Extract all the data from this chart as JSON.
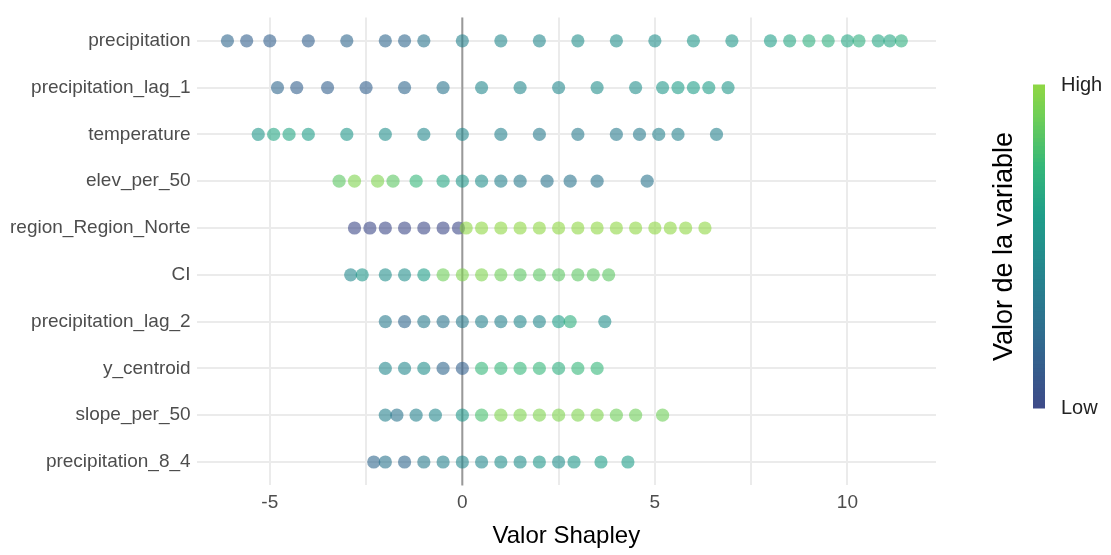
{
  "chart_data": {
    "type": "scatter",
    "orientation": "horizontal",
    "xlabel": "Valor Shapley",
    "clabel": "Valor de la variable",
    "categories": [
      "precipitation",
      "precipitation_lag_1",
      "temperature",
      "elev_per_50",
      "region_Region_Norte",
      "CI",
      "precipitation_lag_2",
      "y_centroid",
      "slope_per_50",
      "precipitation_8_4"
    ],
    "xlim": [
      -6.9,
      12.3
    ],
    "xticks": [
      -5,
      {
        "value": -2.5,
        "label": null
      },
      0,
      {
        "value": 2.5,
        "label": null
      },
      5,
      {
        "value": 7.5,
        "label": null
      },
      10
    ],
    "clim": [
      0,
      1
    ],
    "cticks": [
      {
        "value": 0,
        "label": "Low"
      },
      {
        "value": 1,
        "label": "High"
      }
    ],
    "grid": true,
    "legend": false,
    "marker": "circle",
    "ref_lines": [
      {
        "axis": "x",
        "value": 0,
        "color": "#999999"
      }
    ],
    "series": [
      {
        "x": [
          "precipitation",
          "precipitation",
          "precipitation",
          "precipitation",
          "precipitation",
          "precipitation",
          "precipitation",
          "precipitation",
          "precipitation",
          "precipitation",
          "precipitation",
          "precipitation",
          "precipitation",
          "precipitation",
          "precipitation",
          "precipitation",
          "precipitation",
          "precipitation",
          "precipitation",
          "precipitation",
          "precipitation",
          "precipitation",
          "precipitation",
          "precipitation",
          "precipitation"
        ],
        "values": [
          -6.1,
          -5.6,
          -5,
          -4,
          -3,
          -2,
          -1.5,
          -1,
          0,
          1,
          2,
          3,
          4,
          5,
          6,
          7,
          8,
          8.5,
          9,
          9.5,
          10,
          10.3,
          10.8,
          11.1,
          11.4
        ],
        "colors": [
          "#31688e",
          "#34618d",
          "#34618d",
          "#34618d",
          "#31688e",
          "#31688e",
          "#31688e",
          "#2c758e",
          "#26828e",
          "#24898d",
          "#24898d",
          "#23908c",
          "#23908c",
          "#23908c",
          "#21978a",
          "#21978a",
          "#1f9e89",
          "#26a684",
          "#2eaf7e",
          "#2eaf7e",
          "#26a684",
          "#2eaf7e",
          "#26a684",
          "#26a684",
          "#2eaf7e"
        ]
      },
      {
        "x": [
          "precipitation_lag_1",
          "precipitation_lag_1",
          "precipitation_lag_1",
          "precipitation_lag_1",
          "precipitation_lag_1",
          "precipitation_lag_1",
          "precipitation_lag_1",
          "precipitation_lag_1",
          "precipitation_lag_1",
          "precipitation_lag_1",
          "precipitation_lag_1",
          "precipitation_lag_1",
          "precipitation_lag_1",
          "precipitation_lag_1",
          "precipitation_lag_1",
          "precipitation_lag_1"
        ],
        "values": [
          -4.8,
          -4.3,
          -3.5,
          -2.5,
          -1.5,
          -0.5,
          0.5,
          1.5,
          2.5,
          3.5,
          4.5,
          5.2,
          5.6,
          6,
          6.4,
          6.9
        ],
        "colors": [
          "#31688e",
          "#34618d",
          "#34618d",
          "#34618d",
          "#31688e",
          "#2c758e",
          "#24898d",
          "#24898d",
          "#24898d",
          "#23908c",
          "#23908c",
          "#21978a",
          "#1f9e89",
          "#1f9e89",
          "#1f9e89",
          "#21978a"
        ]
      },
      {
        "x": [
          "temperature",
          "temperature",
          "temperature",
          "temperature",
          "temperature",
          "temperature",
          "temperature",
          "temperature",
          "temperature",
          "temperature",
          "temperature",
          "temperature",
          "temperature",
          "temperature",
          "temperature",
          "temperature"
        ],
        "values": [
          -5.3,
          -4.9,
          -4.5,
          -4,
          -3,
          -2,
          -1,
          0,
          1,
          2,
          3,
          4,
          4.6,
          5.1,
          5.6,
          6.6
        ],
        "colors": [
          "#21978a",
          "#26a684",
          "#26a684",
          "#1f9e89",
          "#21978a",
          "#23908c",
          "#24898d",
          "#24898d",
          "#26828e",
          "#297c8e",
          "#297c8e",
          "#297c8e",
          "#297c8e",
          "#26828e",
          "#26828e",
          "#26828e"
        ]
      },
      {
        "x": [
          "elev_per_50",
          "elev_per_50",
          "elev_per_50",
          "elev_per_50",
          "elev_per_50",
          "elev_per_50",
          "elev_per_50",
          "elev_per_50",
          "elev_per_50",
          "elev_per_50",
          "elev_per_50",
          "elev_per_50",
          "elev_per_50",
          "elev_per_50"
        ],
        "values": [
          -3.2,
          -2.8,
          -2.2,
          -1.8,
          -1.2,
          -0.5,
          0,
          0.5,
          1,
          1.5,
          2.2,
          2.8,
          3.5,
          4.8
        ],
        "colors": [
          "#5bc663",
          "#7fd34e",
          "#7fd34e",
          "#5bc663",
          "#35b779",
          "#26a684",
          "#21978a",
          "#23908c",
          "#26828e",
          "#297c8e",
          "#2c758e",
          "#2c758e",
          "#2c758e",
          "#2c758e"
        ]
      },
      {
        "x": [
          "region_Region_Norte",
          "region_Region_Norte",
          "region_Region_Norte",
          "region_Region_Norte",
          "region_Region_Norte",
          "region_Region_Norte",
          "region_Region_Norte",
          "region_Region_Norte",
          "region_Region_Norte",
          "region_Region_Norte",
          "region_Region_Norte",
          "region_Region_Norte",
          "region_Region_Norte",
          "region_Region_Norte",
          "region_Region_Norte",
          "region_Region_Norte",
          "region_Region_Norte",
          "region_Region_Norte",
          "region_Region_Norte",
          "region_Region_Norte",
          "region_Region_Norte"
        ],
        "values": [
          -2.8,
          -2.4,
          -2,
          -1.5,
          -1,
          -0.5,
          -0.1,
          0.1,
          0.5,
          1,
          1.5,
          2,
          2.5,
          3,
          3.5,
          4,
          4.5,
          5,
          5.4,
          5.8,
          6.3
        ],
        "colors": [
          "#3e4a89",
          "#3e4a89",
          "#3e4a89",
          "#3e4a89",
          "#3e4a89",
          "#3e4a89",
          "#3e4a89",
          "#8fd744",
          "#8fd744",
          "#8fd744",
          "#8fd744",
          "#8fd744",
          "#8fd744",
          "#8fd744",
          "#8fd744",
          "#8fd744",
          "#8fd744",
          "#8fd744",
          "#8fd744",
          "#8fd744",
          "#8fd744"
        ]
      },
      {
        "x": [
          "CI",
          "CI",
          "CI",
          "CI",
          "CI",
          "CI",
          "CI",
          "CI",
          "CI",
          "CI",
          "CI",
          "CI",
          "CI",
          "CI",
          "CI"
        ],
        "values": [
          -2.9,
          -2.6,
          -2,
          -1.5,
          -1,
          -0.5,
          0,
          0.5,
          1,
          1.5,
          2,
          2.5,
          3,
          3.4,
          3.8
        ],
        "colors": [
          "#24898d",
          "#21978a",
          "#23908c",
          "#23908c",
          "#1f9e89",
          "#6ece58",
          "#7fd34e",
          "#7fd34e",
          "#6ece58",
          "#5bc663",
          "#5bc663",
          "#5bc663",
          "#5bc663",
          "#5bc663",
          "#5bc663"
        ]
      },
      {
        "x": [
          "precipitation_lag_2",
          "precipitation_lag_2",
          "precipitation_lag_2",
          "precipitation_lag_2",
          "precipitation_lag_2",
          "precipitation_lag_2",
          "precipitation_lag_2",
          "precipitation_lag_2",
          "precipitation_lag_2",
          "precipitation_lag_2",
          "precipitation_lag_2",
          "precipitation_lag_2"
        ],
        "values": [
          -2,
          -1.5,
          -1,
          -0.5,
          0,
          0.5,
          1,
          1.5,
          2,
          2.5,
          2.8,
          3.7
        ],
        "colors": [
          "#297c8e",
          "#31688e",
          "#297c8e",
          "#2c758e",
          "#297c8e",
          "#26828e",
          "#26828e",
          "#24898d",
          "#24898d",
          "#1f9e89",
          "#2eaf7e",
          "#23908c"
        ]
      },
      {
        "x": [
          "y_centroid",
          "y_centroid",
          "y_centroid",
          "y_centroid",
          "y_centroid",
          "y_centroid",
          "y_centroid",
          "y_centroid",
          "y_centroid",
          "y_centroid",
          "y_centroid",
          "y_centroid"
        ],
        "values": [
          -2,
          -1.5,
          -1,
          -0.5,
          0,
          0.5,
          1,
          1.5,
          2,
          2.5,
          3,
          3.5
        ],
        "colors": [
          "#24898d",
          "#24898d",
          "#23908c",
          "#31688e",
          "#34618d",
          "#35b779",
          "#35b779",
          "#35b779",
          "#35b779",
          "#2eaf7e",
          "#35b779",
          "#35b779"
        ]
      },
      {
        "x": [
          "slope_per_50",
          "slope_per_50",
          "slope_per_50",
          "slope_per_50",
          "slope_per_50",
          "slope_per_50",
          "slope_per_50",
          "slope_per_50",
          "slope_per_50",
          "slope_per_50",
          "slope_per_50",
          "slope_per_50",
          "slope_per_50",
          "slope_per_50",
          "slope_per_50"
        ],
        "values": [
          -2,
          -1.7,
          -1.2,
          -0.7,
          0,
          0.5,
          1,
          1.5,
          2,
          2.5,
          3,
          3.5,
          4,
          4.5,
          5.2
        ],
        "colors": [
          "#26828e",
          "#2c758e",
          "#26828e",
          "#24898d",
          "#21978a",
          "#48bf6e",
          "#7fd34e",
          "#7fd34e",
          "#7fd34e",
          "#7fd34e",
          "#7fd34e",
          "#7fd34e",
          "#6ece58",
          "#6ece58",
          "#6ece58"
        ]
      },
      {
        "x": [
          "precipitation_8_4",
          "precipitation_8_4",
          "precipitation_8_4",
          "precipitation_8_4",
          "precipitation_8_4",
          "precipitation_8_4",
          "precipitation_8_4",
          "precipitation_8_4",
          "precipitation_8_4",
          "precipitation_8_4",
          "precipitation_8_4",
          "precipitation_8_4",
          "precipitation_8_4",
          "precipitation_8_4"
        ],
        "values": [
          -2.3,
          -2,
          -1.5,
          -1,
          -0.5,
          0,
          0.5,
          1,
          1.5,
          2,
          2.5,
          2.9,
          3.6,
          4.3
        ],
        "colors": [
          "#31688e",
          "#2c758e",
          "#31688e",
          "#297c8e",
          "#26828e",
          "#24898d",
          "#24898d",
          "#23908c",
          "#23908c",
          "#21978a",
          "#23908c",
          "#21978a",
          "#1f9e89",
          "#1f9e89"
        ]
      }
    ]
  }
}
